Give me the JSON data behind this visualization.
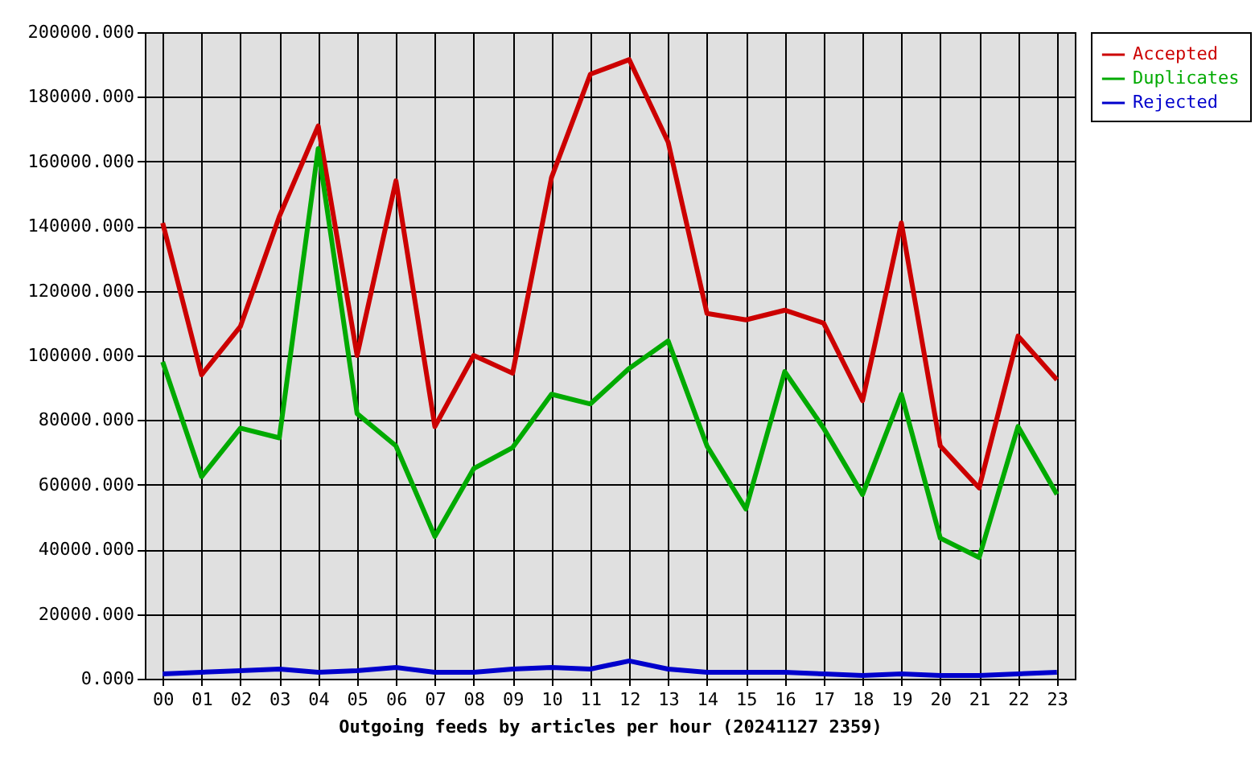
{
  "chart_data": {
    "type": "line",
    "xlabel": "Outgoing feeds by articles per hour (20241127 2359)",
    "categories": [
      "00",
      "01",
      "02",
      "03",
      "04",
      "05",
      "06",
      "07",
      "08",
      "09",
      "10",
      "11",
      "12",
      "13",
      "14",
      "15",
      "16",
      "17",
      "18",
      "19",
      "20",
      "21",
      "22",
      "23"
    ],
    "series": [
      {
        "name": "Accepted",
        "color": "#cc0000",
        "values": [
          141000,
          94000,
          109000,
          143000,
          171000,
          100000,
          154000,
          78000,
          100000,
          94500,
          155000,
          187000,
          191500,
          166000,
          113000,
          111000,
          114000,
          110000,
          86000,
          141000,
          72000,
          59000,
          106000,
          92500
        ]
      },
      {
        "name": "Duplicates",
        "color": "#00aa00",
        "values": [
          98000,
          62500,
          77500,
          74500,
          164000,
          82000,
          72000,
          44000,
          65000,
          71500,
          88000,
          85000,
          96000,
          104500,
          72000,
          52500,
          95000,
          77500,
          57000,
          88000,
          43500,
          37500,
          78000,
          57000
        ]
      },
      {
        "name": "Rejected",
        "color": "#0000cc",
        "values": [
          1500,
          2000,
          2500,
          3000,
          2000,
          2500,
          3500,
          2000,
          2000,
          3000,
          3500,
          3000,
          5500,
          3000,
          2000,
          2000,
          2000,
          1500,
          1000,
          1500,
          1000,
          1000,
          1500,
          2000
        ]
      }
    ],
    "ylim": [
      0,
      200000
    ],
    "yticks": [
      {
        "value": 0,
        "label": "0.000"
      },
      {
        "value": 20000,
        "label": "20000.000"
      },
      {
        "value": 40000,
        "label": "40000.000"
      },
      {
        "value": 60000,
        "label": "60000.000"
      },
      {
        "value": 80000,
        "label": "80000.000"
      },
      {
        "value": 100000,
        "label": "100000.000"
      },
      {
        "value": 120000,
        "label": "120000.000"
      },
      {
        "value": 140000,
        "label": "140000.000"
      },
      {
        "value": 160000,
        "label": "160000.000"
      },
      {
        "value": 180000,
        "label": "180000.000"
      },
      {
        "value": 200000,
        "label": "200000.000"
      }
    ],
    "grid": true,
    "legend": "top right",
    "line_style": "solid"
  }
}
